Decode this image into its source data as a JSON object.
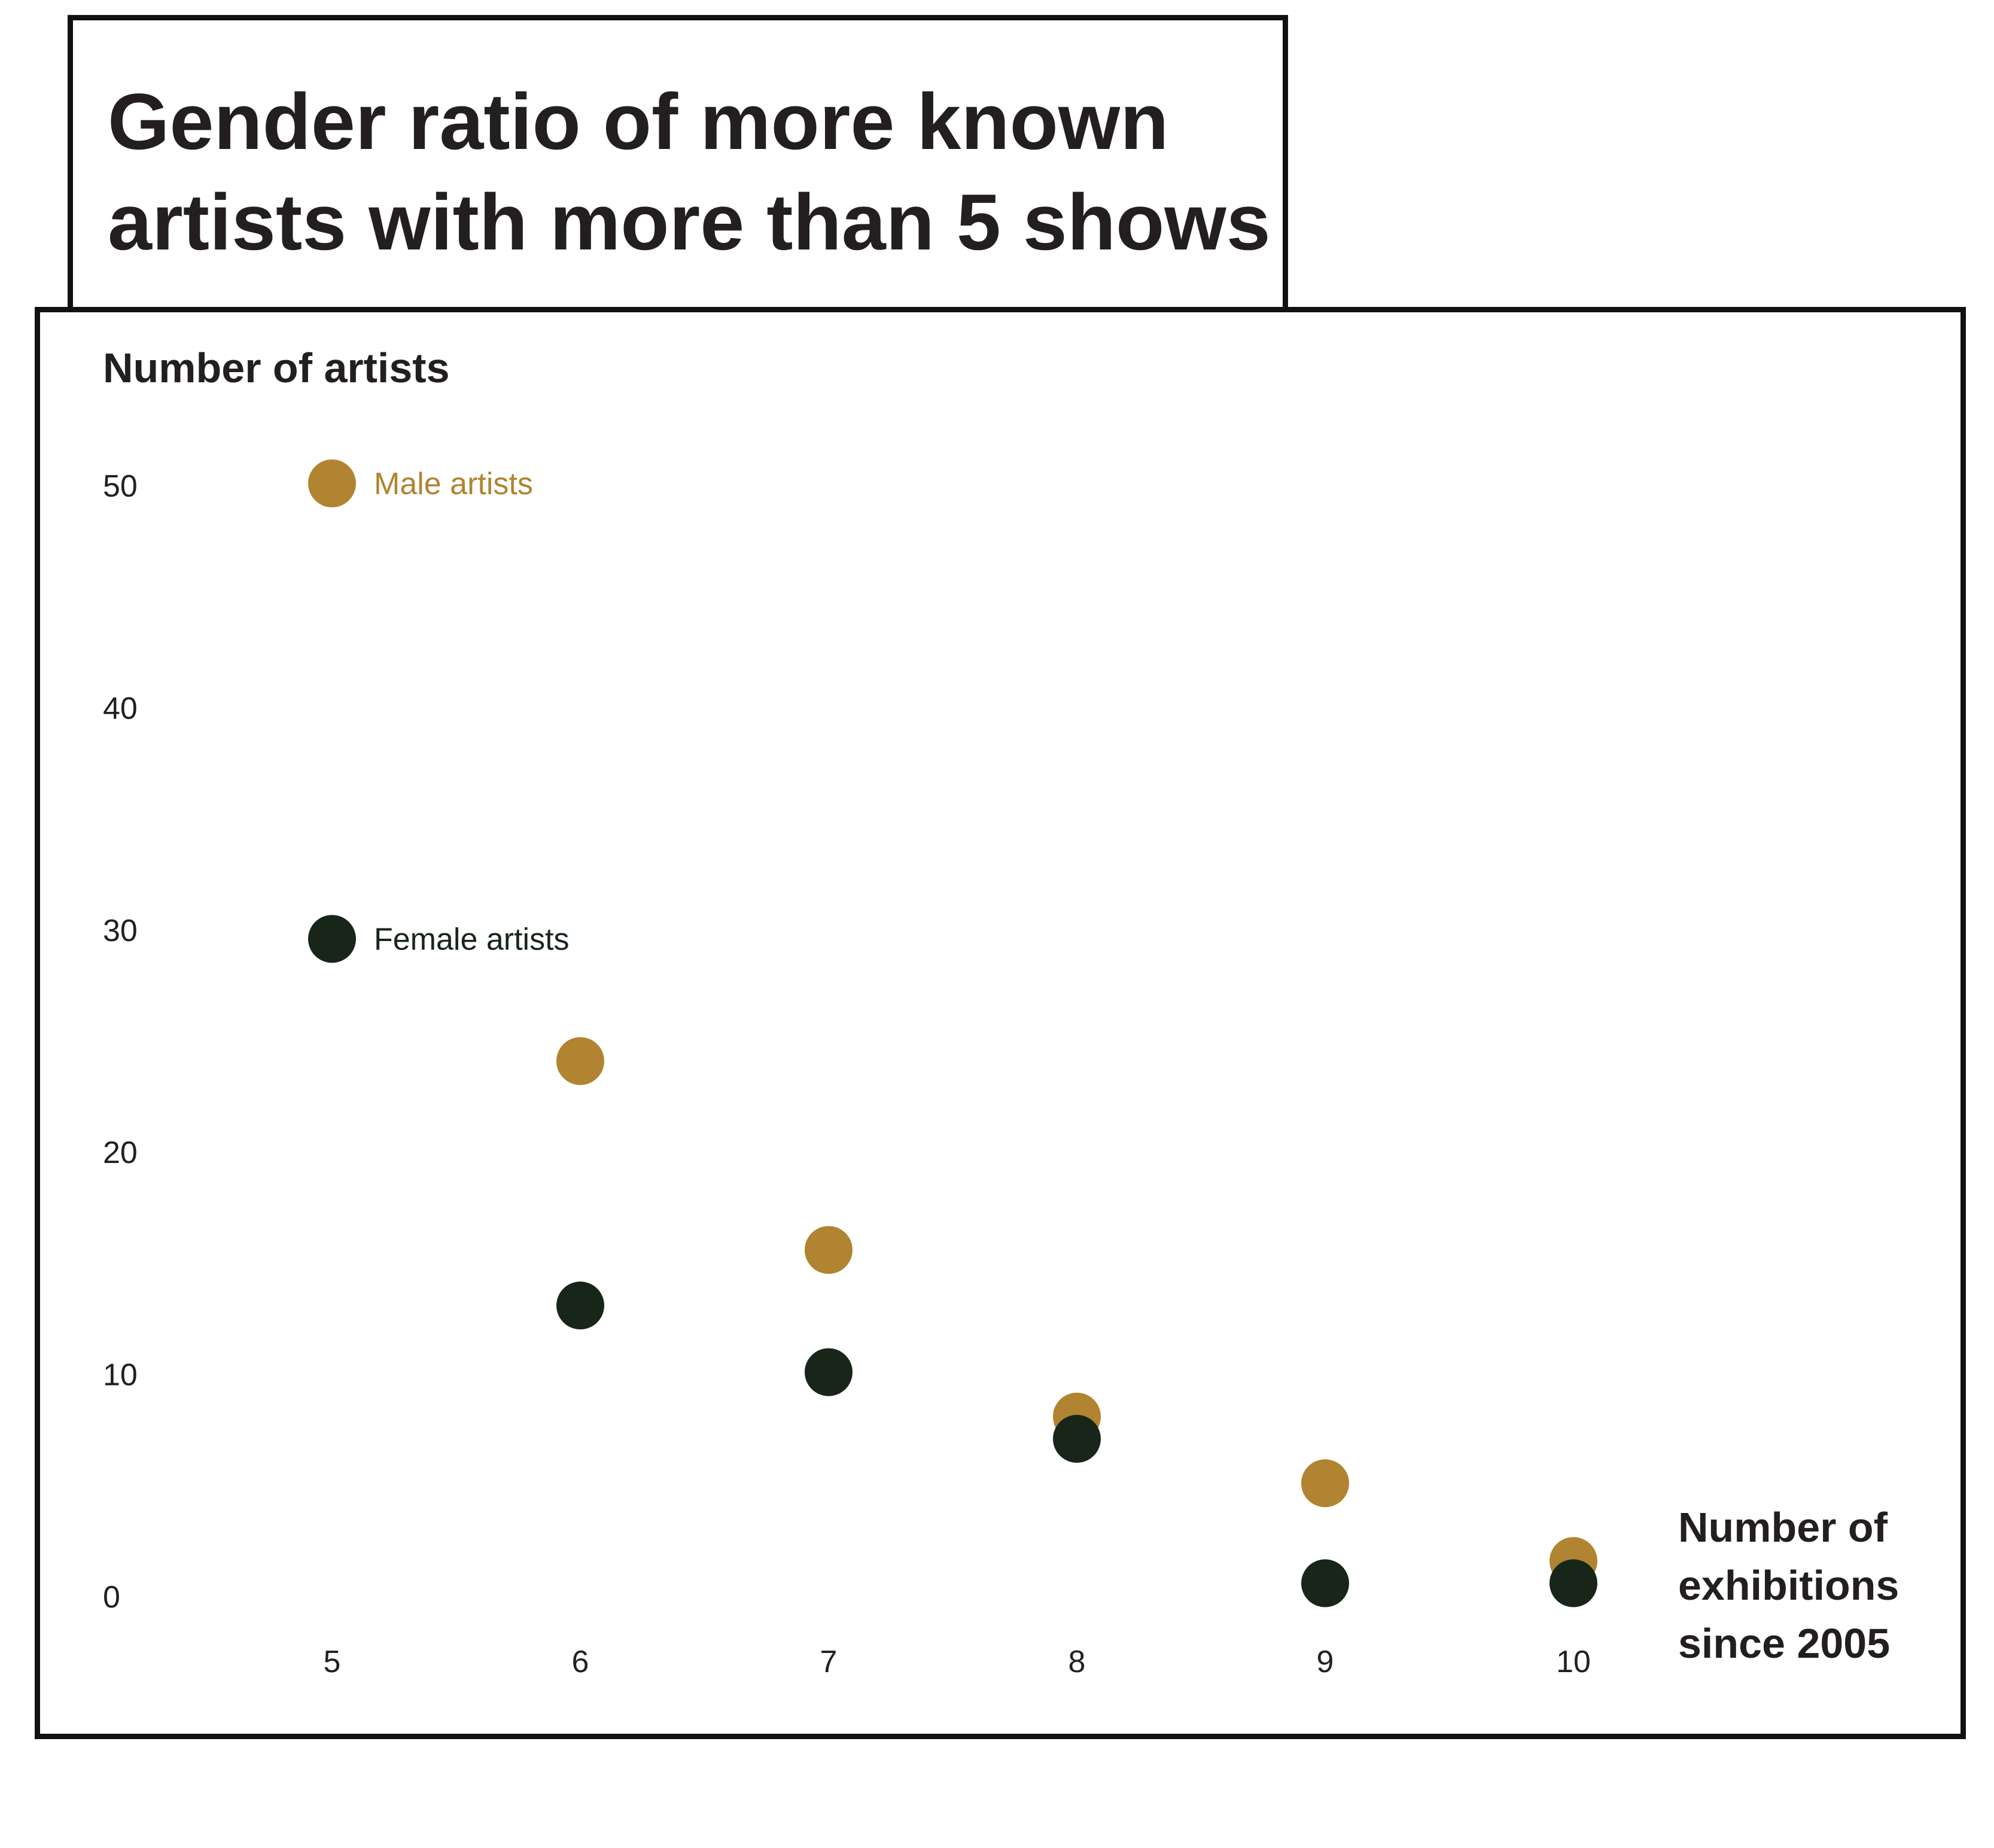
{
  "chart_data": {
    "type": "scatter",
    "title": "Gender ratio of more known artists with more than 5 shows",
    "title_lines": [
      "Gender ratio of more known",
      "artists with more than 5 shows"
    ],
    "ylabel": "Number of artists",
    "xlabel": "Number of exhibitions since 2005",
    "xlabel_lines": [
      "Number of",
      "exhibitions",
      "since 2005"
    ],
    "x": [
      5,
      6,
      7,
      8,
      9,
      10
    ],
    "x_ticks": [
      "5",
      "6",
      "7",
      "8",
      "9",
      "10"
    ],
    "y_ticks": [
      "0",
      "10",
      "20",
      "30",
      "40",
      "50"
    ],
    "xlim": [
      5,
      10
    ],
    "ylim": [
      0,
      50
    ],
    "grid": false,
    "legend": "inline labels next to first points",
    "series": [
      {
        "name": "Male artists",
        "color": "#b08430",
        "values": [
          50,
          24,
          15.5,
          8,
          5,
          1.5
        ]
      },
      {
        "name": "Female artists",
        "color": "#18261a",
        "values": [
          29.5,
          13,
          10,
          7,
          0.5,
          0.5
        ]
      }
    ]
  }
}
